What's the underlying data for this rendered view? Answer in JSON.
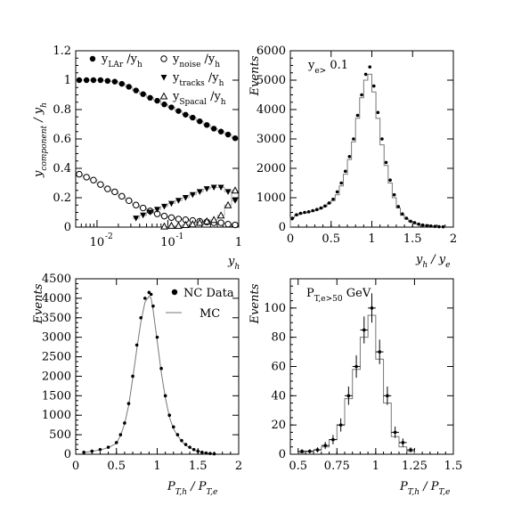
{
  "chart_data": [
    {
      "type": "scatter",
      "xlabel": "y_h",
      "ylabel": "y_component / y_h",
      "x_scale": "log",
      "xlim": [
        0.005,
        1
      ],
      "ylim": [
        0,
        1.2
      ],
      "x_ticks": [
        0.01,
        0.1,
        1
      ],
      "x_tick_labels": [
        "10",
        "10",
        "1"
      ],
      "x_tick_exponents": [
        "-2",
        "-1",
        ""
      ],
      "y_ticks": [
        0,
        0.2,
        0.4,
        0.6,
        0.8,
        1,
        1.2
      ],
      "y_tick_labels": [
        "0",
        "0.2",
        "0.4",
        "0.6",
        "0.8",
        "1",
        "1.2"
      ],
      "legend_position": "top",
      "series": [
        {
          "name": "y_LAr /y_h",
          "marker": "filled-circle",
          "x": [
            0.0056,
            0.0071,
            0.0089,
            0.0112,
            0.0141,
            0.0178,
            0.0224,
            0.0282,
            0.0355,
            0.0447,
            0.0562,
            0.0708,
            0.0891,
            0.1122,
            0.1413,
            0.1778,
            0.2239,
            0.2818,
            0.3548,
            0.4467,
            0.5623,
            0.7079,
            0.8913
          ],
          "y": [
            1.0,
            1.0,
            1.0,
            1.0,
            0.995,
            0.99,
            0.975,
            0.955,
            0.93,
            0.905,
            0.88,
            0.86,
            0.835,
            0.815,
            0.79,
            0.765,
            0.745,
            0.72,
            0.695,
            0.67,
            0.65,
            0.63,
            0.605
          ]
        },
        {
          "name": "y_noise /y_h",
          "marker": "open-circle",
          "x": [
            0.0056,
            0.0071,
            0.0089,
            0.0112,
            0.0141,
            0.0178,
            0.0224,
            0.0282,
            0.0355,
            0.0447,
            0.0562,
            0.0708,
            0.0891,
            0.1122,
            0.1413,
            0.1778,
            0.2239,
            0.2818,
            0.3548,
            0.4467,
            0.5623,
            0.7079,
            0.8913
          ],
          "y": [
            0.36,
            0.34,
            0.32,
            0.29,
            0.26,
            0.24,
            0.21,
            0.18,
            0.15,
            0.13,
            0.11,
            0.09,
            0.075,
            0.065,
            0.055,
            0.05,
            0.045,
            0.04,
            0.035,
            0.03,
            0.03,
            0.02,
            0.015
          ]
        },
        {
          "name": "y_tracks /y_h",
          "marker": "filled-triangle-down",
          "x": [
            0.0355,
            0.0447,
            0.0562,
            0.0708,
            0.0891,
            0.1122,
            0.1413,
            0.1778,
            0.2239,
            0.2818,
            0.3548,
            0.4467,
            0.5623,
            0.7079,
            0.8913
          ],
          "y": [
            0.06,
            0.08,
            0.1,
            0.12,
            0.14,
            0.16,
            0.18,
            0.2,
            0.22,
            0.24,
            0.26,
            0.27,
            0.27,
            0.24,
            0.18
          ]
        },
        {
          "name": "y_Spacal /y_h",
          "marker": "open-triangle-up",
          "x": [
            0.0891,
            0.1122,
            0.1413,
            0.1778,
            0.2239,
            0.2818,
            0.3548,
            0.4467,
            0.5623,
            0.7079,
            0.8913
          ],
          "y": [
            0.005,
            0.01,
            0.01,
            0.015,
            0.02,
            0.03,
            0.04,
            0.05,
            0.08,
            0.15,
            0.25
          ]
        }
      ]
    },
    {
      "type": "histogram",
      "xlabel": "y_h / y_e",
      "ylabel": "Events",
      "annotation": "y_e> 0.1",
      "xlim": [
        0,
        2
      ],
      "ylim": [
        0,
        6000
      ],
      "x_ticks": [
        0,
        0.5,
        1,
        1.5,
        2
      ],
      "x_tick_labels": [
        "0",
        "0.5",
        "1",
        "1.5",
        "2"
      ],
      "y_ticks": [
        0,
        1000,
        2000,
        3000,
        4000,
        5000,
        6000
      ],
      "y_tick_labels": [
        "0",
        "1000",
        "2000",
        "3000",
        "4000",
        "5000",
        "6000"
      ],
      "x": [
        0.025,
        0.075,
        0.125,
        0.175,
        0.225,
        0.275,
        0.325,
        0.375,
        0.425,
        0.475,
        0.525,
        0.575,
        0.625,
        0.675,
        0.725,
        0.775,
        0.825,
        0.875,
        0.925,
        0.975,
        1.025,
        1.075,
        1.125,
        1.175,
        1.225,
        1.275,
        1.325,
        1.375,
        1.425,
        1.475,
        1.525,
        1.575,
        1.625,
        1.675,
        1.725,
        1.775,
        1.825,
        1.875
      ],
      "data": [
        300,
        420,
        470,
        500,
        520,
        560,
        600,
        650,
        720,
        820,
        950,
        1200,
        1500,
        1900,
        2400,
        3000,
        3800,
        4500,
        5200,
        5450,
        4800,
        3900,
        3000,
        2200,
        1600,
        1100,
        700,
        450,
        300,
        200,
        150,
        100,
        70,
        50,
        35,
        25,
        15,
        10
      ],
      "mc": [
        320,
        400,
        460,
        480,
        510,
        540,
        580,
        630,
        700,
        800,
        900,
        1100,
        1400,
        1800,
        2300,
        2900,
        3700,
        4400,
        5000,
        5200,
        4600,
        3700,
        2800,
        2100,
        1500,
        1000,
        650,
        400,
        280,
        180,
        130,
        90,
        60,
        45,
        30,
        20,
        12,
        8
      ]
    },
    {
      "type": "histogram",
      "xlabel": "P_T,h / P_T,e",
      "ylabel": "Events",
      "xlim": [
        0,
        2
      ],
      "ylim": [
        0,
        4500
      ],
      "x_ticks": [
        0,
        0.5,
        1,
        1.5,
        2
      ],
      "x_tick_labels": [
        "0",
        "0.5",
        "1",
        "1.5",
        "2"
      ],
      "y_ticks": [
        0,
        500,
        1000,
        1500,
        2000,
        2500,
        3000,
        3500,
        4000,
        4500
      ],
      "y_tick_labels": [
        "0",
        "500",
        "1000",
        "1500",
        "2000",
        "2500",
        "3000",
        "3500",
        "4000",
        "4500"
      ],
      "legend_position": "top-right",
      "series": [
        {
          "name": "NC Data",
          "marker": "filled-circle"
        },
        {
          "name": "MC",
          "marker": "line"
        }
      ],
      "x": [
        0.1,
        0.2,
        0.3,
        0.4,
        0.5,
        0.55,
        0.6,
        0.65,
        0.7,
        0.75,
        0.8,
        0.85,
        0.9,
        0.925,
        0.95,
        1.0,
        1.05,
        1.1,
        1.15,
        1.2,
        1.25,
        1.3,
        1.35,
        1.4,
        1.45,
        1.5,
        1.55,
        1.6,
        1.65,
        1.7
      ],
      "data": [
        50,
        80,
        120,
        180,
        300,
        500,
        800,
        1300,
        2000,
        2800,
        3500,
        4000,
        4150,
        4100,
        3800,
        3000,
        2200,
        1500,
        1000,
        700,
        500,
        350,
        250,
        180,
        120,
        80,
        50,
        30,
        20,
        10
      ],
      "mc": [
        45,
        75,
        110,
        170,
        280,
        480,
        780,
        1250,
        1950,
        2700,
        3400,
        3900,
        4050,
        4000,
        3700,
        2900,
        2100,
        1450,
        950,
        650,
        480,
        330,
        230,
        170,
        110,
        75,
        45,
        28,
        18,
        8
      ]
    },
    {
      "type": "histogram",
      "xlabel": "P_T,h / P_T,e",
      "ylabel": "Events",
      "annotation": "P_T,e>50 GeV",
      "xlim": [
        0.45,
        1.5
      ],
      "ylim": [
        0,
        120
      ],
      "x_ticks": [
        0.5,
        0.75,
        1,
        1.25,
        1.5
      ],
      "x_tick_labels": [
        "0.5",
        "0.75",
        "1",
        "1.25",
        "1.5"
      ],
      "y_ticks": [
        0,
        20,
        40,
        60,
        80,
        100
      ],
      "y_tick_labels": [
        "0",
        "20",
        "40",
        "60",
        "80",
        "100"
      ],
      "x": [
        0.525,
        0.575,
        0.625,
        0.675,
        0.725,
        0.775,
        0.825,
        0.875,
        0.925,
        0.975,
        1.025,
        1.075,
        1.125,
        1.175,
        1.225
      ],
      "data": [
        2,
        2,
        3,
        6,
        10,
        20,
        40,
        60,
        85,
        100,
        70,
        40,
        15,
        8,
        3
      ],
      "errors": [
        1.4,
        1.4,
        1.7,
        2.4,
        3.2,
        4.5,
        6.3,
        7.7,
        9.2,
        10,
        8.4,
        6.3,
        3.9,
        2.8,
        1.7
      ],
      "mc": [
        1,
        2,
        3,
        5,
        10,
        20,
        38,
        58,
        80,
        95,
        65,
        35,
        12,
        5,
        2
      ]
    }
  ]
}
